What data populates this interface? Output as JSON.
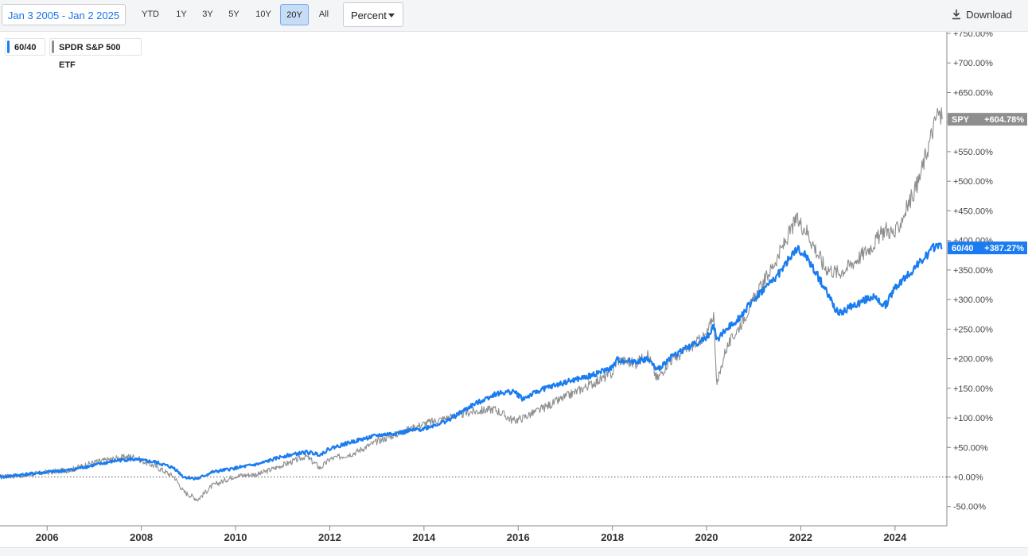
{
  "toolbar": {
    "date_range": "Jan 3 2005 - Jan 2 2025",
    "ranges": [
      "YTD",
      "1Y",
      "3Y",
      "5Y",
      "10Y",
      "20Y",
      "All"
    ],
    "active_range": "20Y",
    "scale_select": "Percent",
    "download_label": "Download"
  },
  "colors": {
    "primary": "#1a7cf0",
    "secondary": "#8e8e8e",
    "accent_text": "#1a73e8"
  },
  "chart_data": {
    "type": "line",
    "x_ticks": [
      "2006",
      "2008",
      "2010",
      "2012",
      "2014",
      "2016",
      "2018",
      "2020",
      "2022",
      "2024"
    ],
    "y_ticks": [
      "+750.00%",
      "+700.00%",
      "+650.00%",
      "+600.00%",
      "+550.00%",
      "+500.00%",
      "+450.00%",
      "+400.00%",
      "+350.00%",
      "+300.00%",
      "+250.00%",
      "+200.00%",
      "+150.00%",
      "+100.00%",
      "+50.00%",
      "+0.00%",
      "-50.00%"
    ],
    "y_range": [
      -75,
      750
    ],
    "x_range": [
      2005.0,
      2025.1
    ],
    "baseline": 0,
    "series": [
      {
        "name": "60/40",
        "tag": "60/40",
        "last_label": "+387.27%",
        "color": "#1a7cf0",
        "x": [
          2005.0,
          2005.5,
          2006.0,
          2006.5,
          2007.0,
          2007.5,
          2007.8,
          2008.3,
          2008.7,
          2008.9,
          2009.2,
          2009.5,
          2010.0,
          2010.5,
          2011.0,
          2011.5,
          2011.8,
          2012.0,
          2012.5,
          2013.0,
          2013.5,
          2014.0,
          2014.5,
          2015.0,
          2015.5,
          2015.9,
          2016.1,
          2016.5,
          2017.0,
          2017.5,
          2018.0,
          2018.1,
          2018.5,
          2018.75,
          2018.95,
          2019.2,
          2019.5,
          2020.0,
          2020.15,
          2020.22,
          2020.4,
          2020.7,
          2021.0,
          2021.5,
          2021.9,
          2022.1,
          2022.5,
          2022.8,
          2023.0,
          2023.5,
          2023.8,
          2024.0,
          2024.5,
          2024.9,
          2025.0
        ],
        "y": [
          0,
          4,
          8,
          12,
          20,
          28,
          30,
          25,
          15,
          0,
          -3,
          8,
          15,
          22,
          35,
          42,
          38,
          48,
          60,
          70,
          75,
          82,
          95,
          120,
          140,
          145,
          132,
          148,
          160,
          170,
          185,
          198,
          195,
          200,
          180,
          200,
          215,
          235,
          255,
          232,
          248,
          270,
          300,
          340,
          385,
          375,
          320,
          275,
          285,
          305,
          290,
          320,
          360,
          395,
          387.27
        ]
      },
      {
        "name": "SPDR S&P 500 ETF",
        "tag": "SPY",
        "last_label": "+604.78%",
        "color": "#8e8e8e",
        "x": [
          2005.0,
          2005.5,
          2006.0,
          2006.5,
          2007.0,
          2007.5,
          2007.8,
          2008.3,
          2008.7,
          2008.9,
          2009.2,
          2009.5,
          2010.0,
          2010.5,
          2011.0,
          2011.5,
          2011.8,
          2012.0,
          2012.5,
          2013.0,
          2013.5,
          2014.0,
          2014.5,
          2015.0,
          2015.5,
          2015.9,
          2016.1,
          2016.5,
          2017.0,
          2017.5,
          2018.0,
          2018.1,
          2018.5,
          2018.75,
          2018.95,
          2019.2,
          2019.5,
          2020.0,
          2020.15,
          2020.22,
          2020.4,
          2020.7,
          2021.0,
          2021.5,
          2021.9,
          2022.1,
          2022.5,
          2022.8,
          2023.0,
          2023.5,
          2023.8,
          2024.0,
          2024.5,
          2024.9,
          2025.0
        ],
        "y": [
          0,
          3,
          8,
          12,
          25,
          32,
          35,
          18,
          0,
          -25,
          -38,
          -15,
          2,
          5,
          20,
          35,
          15,
          30,
          40,
          60,
          75,
          90,
          100,
          110,
          115,
          95,
          100,
          115,
          135,
          155,
          175,
          198,
          192,
          208,
          165,
          195,
          210,
          240,
          275,
          155,
          215,
          255,
          300,
          370,
          435,
          420,
          355,
          345,
          355,
          390,
          420,
          410,
          500,
          615,
          604.78
        ]
      }
    ]
  }
}
